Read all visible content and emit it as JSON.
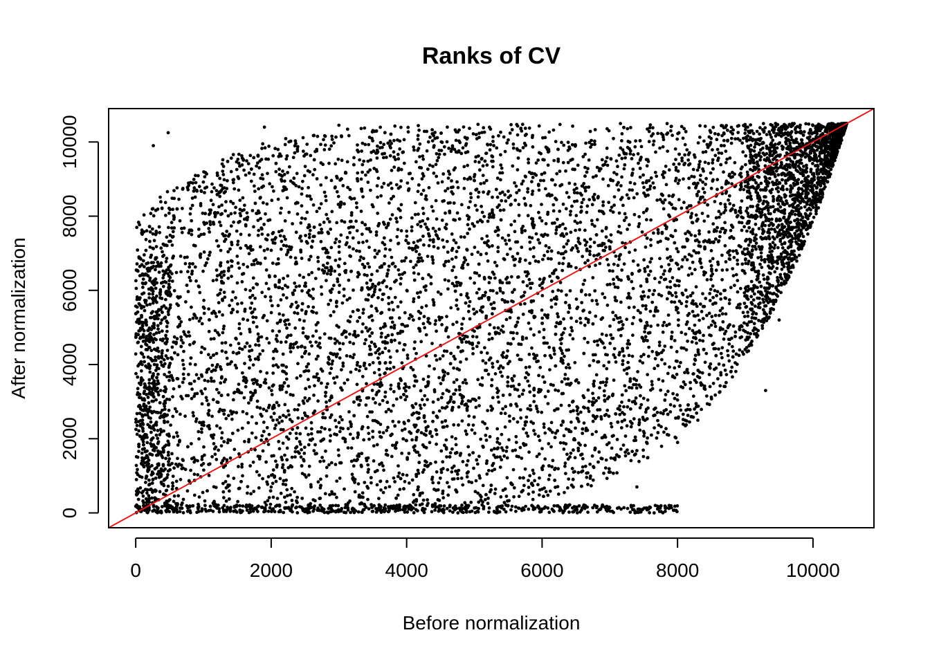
{
  "chart_data": {
    "type": "scatter",
    "title": "Ranks of CV",
    "xlabel": "Before normalization",
    "ylabel": "After normalization",
    "xlim": [
      -400,
      10900
    ],
    "ylim": [
      -400,
      10900
    ],
    "x_ticks": [
      0,
      2000,
      4000,
      6000,
      8000,
      10000
    ],
    "y_ticks": [
      0,
      2000,
      4000,
      6000,
      8000,
      10000
    ],
    "point_color": "#000000",
    "reference_line": {
      "slope": 1,
      "intercept": 0,
      "color": "#e31a1c"
    },
    "sample_points": {
      "x": [
        30,
        120,
        260,
        480,
        900,
        1500,
        1900,
        2500,
        3000,
        3600,
        4100,
        4600,
        5200,
        5800,
        6300,
        6900,
        7400,
        7900,
        8300,
        8700,
        9100,
        9500,
        9800,
        10100,
        10300,
        10450,
        2000,
        3500,
        5000,
        6500,
        8000,
        9300
      ],
      "y": [
        1500,
        4200,
        9900,
        10250,
        8700,
        6200,
        10400,
        3100,
        10450,
        200,
        5200,
        10400,
        8600,
        100,
        4300,
        9000,
        700,
        10300,
        2500,
        6000,
        10300,
        5200,
        7800,
        9500,
        10200,
        10500,
        700,
        2200,
        4900,
        7200,
        1900,
        3300
      ]
    },
    "grid": false,
    "legend": "none"
  }
}
